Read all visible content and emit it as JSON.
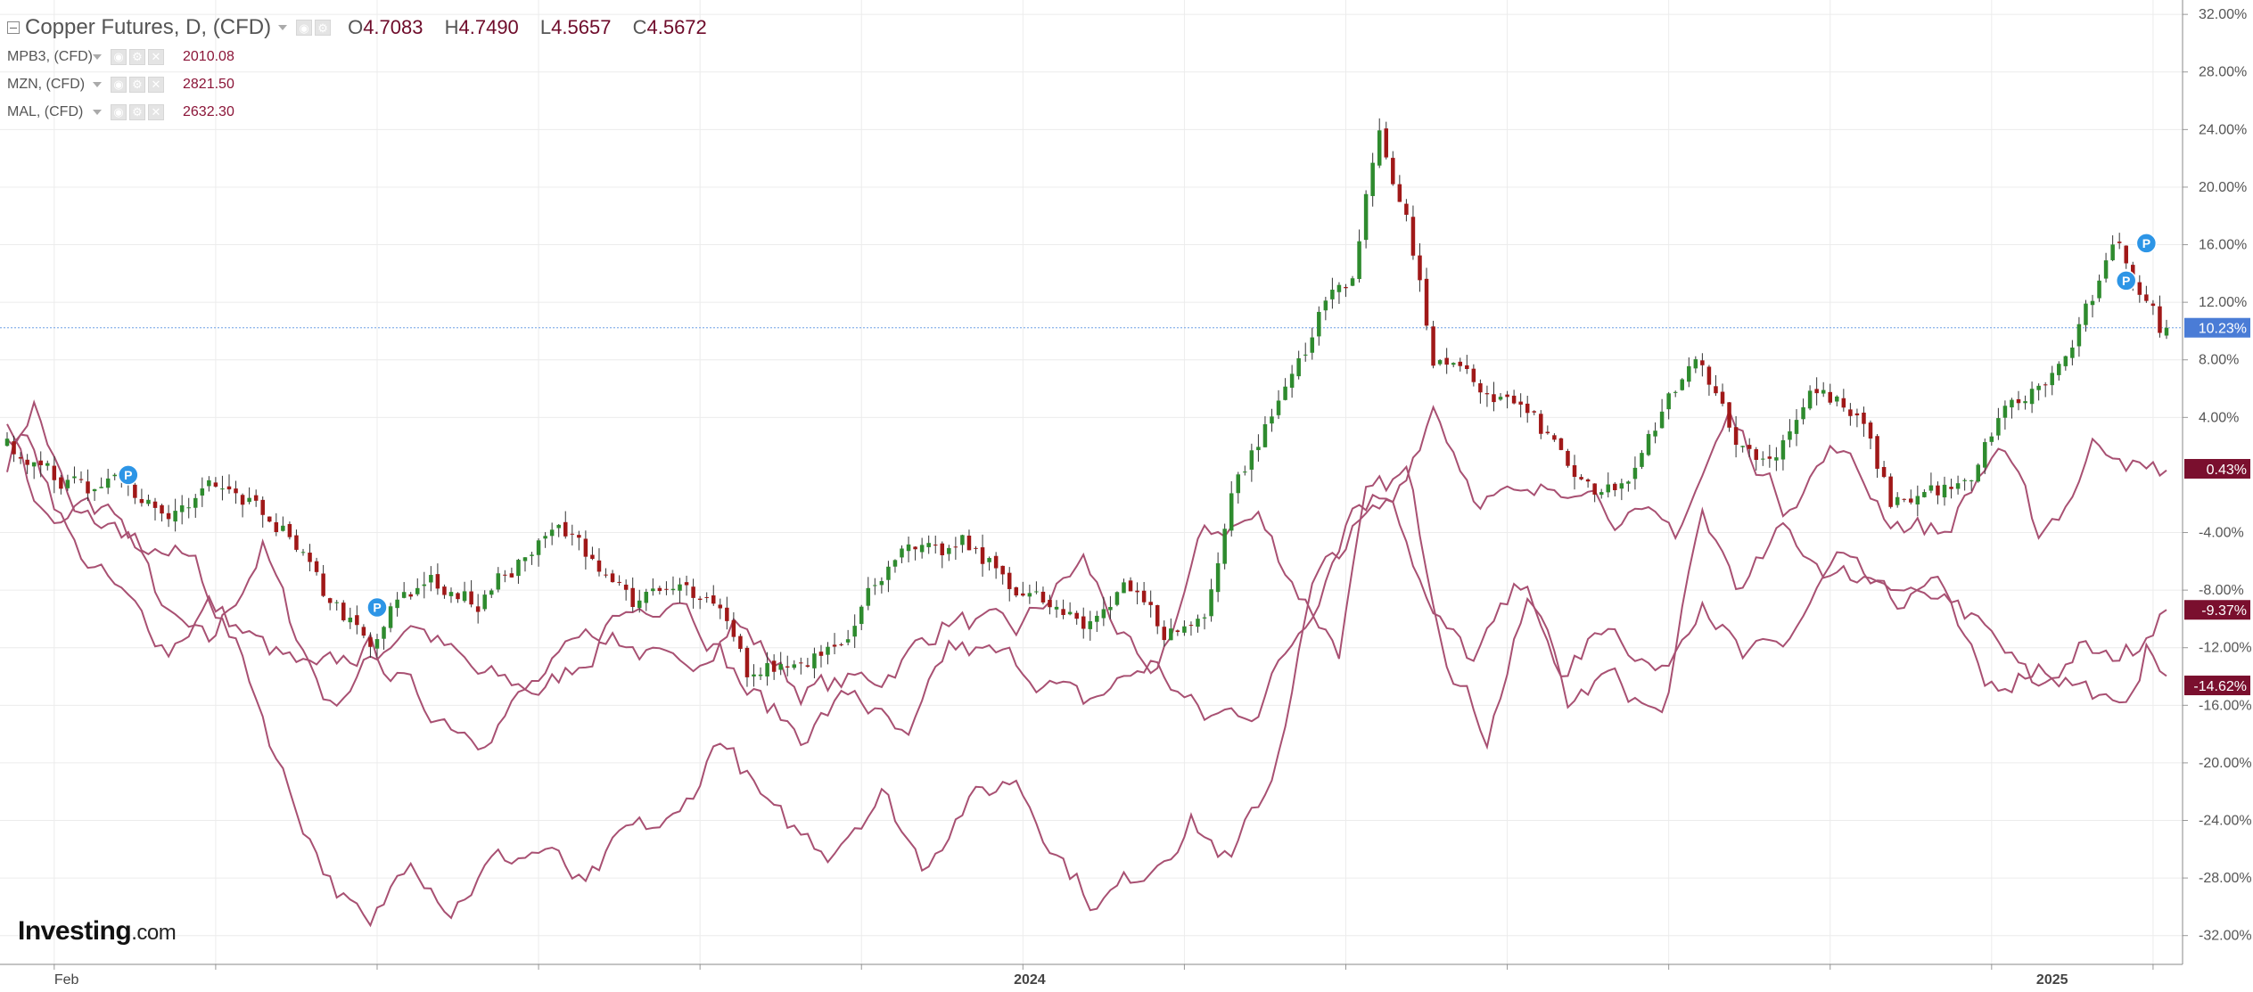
{
  "legend": {
    "main": {
      "symbol": "Copper Futures, D, (CFD)",
      "o_label": "O",
      "o": "4.7083",
      "h_label": "H",
      "h": "4.7490",
      "l_label": "L",
      "l": "4.5657",
      "c_label": "C",
      "c": "4.5672"
    },
    "subs": [
      {
        "symbol": "MPB3, (CFD)",
        "value": "2010.08"
      },
      {
        "symbol": "MZN, (CFD)",
        "value": "2821.50"
      },
      {
        "symbol": "MAL, (CFD)",
        "value": "2632.30"
      }
    ]
  },
  "logo": {
    "brand": "Investing",
    "suffix": ".com"
  },
  "chart_data": {
    "type": "line",
    "title": "Copper Futures, D, (CFD)",
    "xlabel": "",
    "ylabel": "",
    "y_unit": "%",
    "ylim": [
      -34,
      33
    ],
    "y_ticks": [
      "32.00%",
      "28.00%",
      "24.00%",
      "20.00%",
      "16.00%",
      "12.00%",
      "8.00%",
      "4.00%",
      "-4.00%",
      "-8.00%",
      "-12.00%",
      "-16.00%",
      "-20.00%",
      "-24.00%",
      "-28.00%",
      "-32.00%"
    ],
    "x_tick_labels": [
      {
        "label": "Feb",
        "i": 7
      },
      {
        "label": "2024",
        "i": 152
      },
      {
        "label": "2025",
        "i": 304
      }
    ],
    "x_count": 322,
    "grid": true,
    "current_line": 10.23,
    "badges": [
      {
        "label": "10.23%",
        "value": 10.23,
        "color": "#4a7cd6"
      },
      {
        "label": "0.43%",
        "value": 0.43,
        "color": "#7a0f2e"
      },
      {
        "label": "-9.37%",
        "value": -9.37,
        "color": "#7a0f2e"
      },
      {
        "label": "-14.62%",
        "value": -14.62,
        "color": "#7a0f2e"
      }
    ],
    "series_color": "#a85072",
    "up_color": "#2e8b2e",
    "down_color": "#a01818",
    "wick_color": "#333333",
    "marker_color": "#2d95e6",
    "marker_letter": "P",
    "markers": [
      {
        "i": 18,
        "value": 0.0
      },
      {
        "i": 55,
        "value": -9.2
      },
      {
        "i": 315,
        "value": 13.5
      },
      {
        "i": 318,
        "value": 16.1
      }
    ],
    "series": [
      {
        "name": "MPB3, (CFD)",
        "key_points": [
          [
            0,
            1
          ],
          [
            4,
            5
          ],
          [
            10,
            -3
          ],
          [
            18,
            -4
          ],
          [
            24,
            -10
          ],
          [
            30,
            -12
          ],
          [
            38,
            -5
          ],
          [
            42,
            -10
          ],
          [
            48,
            -16
          ],
          [
            54,
            -13
          ],
          [
            60,
            -10
          ],
          [
            70,
            -14
          ],
          [
            80,
            -15
          ],
          [
            90,
            -11
          ],
          [
            100,
            -14
          ],
          [
            108,
            -10
          ],
          [
            118,
            -15
          ],
          [
            130,
            -14
          ],
          [
            140,
            -10
          ],
          [
            150,
            -11
          ],
          [
            160,
            -6
          ],
          [
            170,
            -15
          ],
          [
            178,
            -4
          ],
          [
            186,
            -3
          ],
          [
            192,
            -8
          ],
          [
            198,
            -12
          ],
          [
            202,
            -2
          ],
          [
            208,
            0
          ],
          [
            214,
            -12
          ],
          [
            220,
            -18
          ],
          [
            226,
            -9
          ],
          [
            232,
            -14
          ],
          [
            238,
            -10
          ],
          [
            246,
            -14
          ],
          [
            252,
            -8
          ],
          [
            258,
            -13
          ],
          [
            264,
            -12
          ],
          [
            272,
            -6
          ],
          [
            280,
            -9
          ],
          [
            288,
            -8
          ],
          [
            296,
            -12
          ],
          [
            302,
            -15
          ],
          [
            308,
            -12
          ],
          [
            312,
            -13
          ],
          [
            316,
            -12
          ],
          [
            320,
            -9.37
          ]
        ]
      },
      {
        "name": "MZN, (CFD)",
        "key_points": [
          [
            0,
            3
          ],
          [
            4,
            2
          ],
          [
            10,
            -5
          ],
          [
            18,
            -9
          ],
          [
            24,
            -12
          ],
          [
            30,
            -9
          ],
          [
            38,
            -12
          ],
          [
            46,
            -14
          ],
          [
            54,
            -12
          ],
          [
            62,
            -16
          ],
          [
            70,
            -18
          ],
          [
            80,
            -14
          ],
          [
            90,
            -10
          ],
          [
            100,
            -8
          ],
          [
            110,
            -15
          ],
          [
            118,
            -18
          ],
          [
            126,
            -15
          ],
          [
            134,
            -19
          ],
          [
            140,
            -12
          ],
          [
            150,
            -13
          ],
          [
            160,
            -16
          ],
          [
            170,
            -13
          ],
          [
            178,
            -17
          ],
          [
            186,
            -16
          ],
          [
            194,
            -9
          ],
          [
            200,
            -2
          ],
          [
            206,
            -1
          ],
          [
            212,
            -10
          ],
          [
            218,
            -13
          ],
          [
            226,
            -7
          ],
          [
            232,
            -16
          ],
          [
            238,
            -14
          ],
          [
            246,
            -17
          ],
          [
            252,
            -3
          ],
          [
            258,
            -8
          ],
          [
            264,
            -4
          ],
          [
            272,
            -7
          ],
          [
            280,
            -7
          ],
          [
            288,
            -9
          ],
          [
            294,
            -15
          ],
          [
            302,
            -13
          ],
          [
            310,
            -15
          ],
          [
            314,
            -17
          ],
          [
            318,
            -12
          ],
          [
            322,
            -14.62
          ]
        ]
      },
      {
        "name": "MAL, (CFD)",
        "key_points": [
          [
            0,
            3
          ],
          [
            6,
            -3
          ],
          [
            12,
            -2
          ],
          [
            20,
            -5
          ],
          [
            28,
            -6
          ],
          [
            36,
            -14
          ],
          [
            42,
            -22
          ],
          [
            48,
            -28
          ],
          [
            54,
            -32
          ],
          [
            60,
            -26
          ],
          [
            66,
            -30
          ],
          [
            72,
            -27
          ],
          [
            80,
            -26
          ],
          [
            86,
            -29
          ],
          [
            92,
            -25
          ],
          [
            100,
            -24
          ],
          [
            106,
            -18
          ],
          [
            114,
            -24
          ],
          [
            122,
            -26
          ],
          [
            130,
            -22
          ],
          [
            136,
            -27
          ],
          [
            142,
            -23
          ],
          [
            150,
            -21
          ],
          [
            156,
            -26
          ],
          [
            162,
            -30
          ],
          [
            170,
            -27
          ],
          [
            176,
            -24
          ],
          [
            182,
            -27
          ],
          [
            188,
            -21
          ],
          [
            194,
            -8
          ],
          [
            200,
            -4
          ],
          [
            206,
            -2
          ],
          [
            212,
            5
          ],
          [
            218,
            -1
          ],
          [
            226,
            -2
          ],
          [
            234,
            0
          ],
          [
            240,
            -3
          ],
          [
            248,
            -4
          ],
          [
            256,
            4
          ],
          [
            264,
            -2
          ],
          [
            272,
            2
          ],
          [
            280,
            -3
          ],
          [
            288,
            -4
          ],
          [
            296,
            2
          ],
          [
            302,
            -4
          ],
          [
            306,
            -2
          ],
          [
            310,
            2
          ],
          [
            314,
            2
          ],
          [
            318,
            0
          ],
          [
            322,
            0.43
          ]
        ]
      }
    ],
    "candles": {
      "name": "Copper Futures, D, (CFD)",
      "count": 322,
      "key_points": [
        [
          0,
          2
        ],
        [
          6,
          0
        ],
        [
          12,
          -1
        ],
        [
          18,
          0
        ],
        [
          24,
          -4
        ],
        [
          30,
          -1
        ],
        [
          36,
          -2
        ],
        [
          42,
          -4
        ],
        [
          48,
          -9
        ],
        [
          54,
          -11
        ],
        [
          58,
          -9
        ],
        [
          62,
          -7
        ],
        [
          70,
          -9
        ],
        [
          76,
          -6
        ],
        [
          82,
          -4
        ],
        [
          88,
          -6
        ],
        [
          94,
          -9
        ],
        [
          100,
          -8
        ],
        [
          106,
          -10
        ],
        [
          110,
          -14
        ],
        [
          118,
          -13
        ],
        [
          126,
          -10
        ],
        [
          132,
          -5
        ],
        [
          138,
          -6
        ],
        [
          142,
          -5
        ],
        [
          148,
          -7
        ],
        [
          154,
          -9
        ],
        [
          160,
          -11
        ],
        [
          166,
          -7
        ],
        [
          172,
          -11
        ],
        [
          178,
          -10
        ],
        [
          182,
          -1
        ],
        [
          188,
          4
        ],
        [
          196,
          12
        ],
        [
          200,
          14
        ],
        [
          204,
          24
        ],
        [
          208,
          18
        ],
        [
          212,
          8
        ],
        [
          218,
          6
        ],
        [
          224,
          5
        ],
        [
          230,
          2
        ],
        [
          236,
          -2
        ],
        [
          242,
          0
        ],
        [
          248,
          6
        ],
        [
          252,
          8
        ],
        [
          258,
          2
        ],
        [
          262,
          1
        ],
        [
          268,
          6
        ],
        [
          272,
          5
        ],
        [
          276,
          3
        ],
        [
          280,
          -2
        ],
        [
          286,
          -1
        ],
        [
          292,
          -1
        ],
        [
          296,
          4
        ],
        [
          302,
          6
        ],
        [
          306,
          8
        ],
        [
          310,
          12
        ],
        [
          314,
          16
        ],
        [
          320,
          10.23
        ]
      ]
    }
  }
}
